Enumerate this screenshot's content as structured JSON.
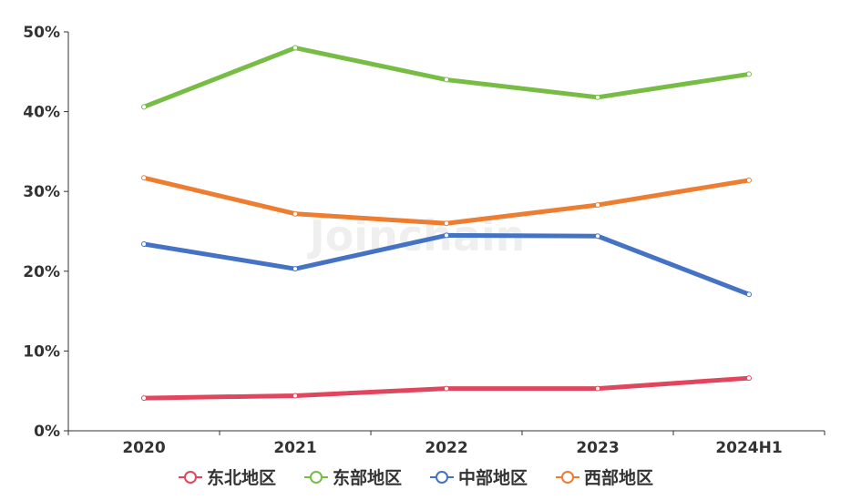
{
  "watermark": "Joinchain",
  "chart_data": {
    "type": "line",
    "categories": [
      "2020",
      "2021",
      "2022",
      "2023",
      "2024H1"
    ],
    "ylim": [
      0,
      50
    ],
    "yticks": [
      "0%",
      "10%",
      "20%",
      "30%",
      "40%",
      "50%"
    ],
    "grid": false,
    "legend_position": "bottom",
    "series": [
      {
        "name": "东北地区",
        "color": "#e0475f",
        "values": [
          4.1,
          4.4,
          5.3,
          5.3,
          6.6
        ]
      },
      {
        "name": "东部地区",
        "color": "#77bd45",
        "values": [
          40.6,
          48.0,
          44.0,
          41.8,
          44.7
        ]
      },
      {
        "name": "中部地区",
        "color": "#4472c4",
        "values": [
          23.4,
          20.3,
          24.5,
          24.4,
          17.1
        ]
      },
      {
        "name": "西部地区",
        "color": "#ed7d31",
        "values": [
          31.7,
          27.2,
          26.0,
          28.3,
          31.4
        ]
      }
    ]
  }
}
